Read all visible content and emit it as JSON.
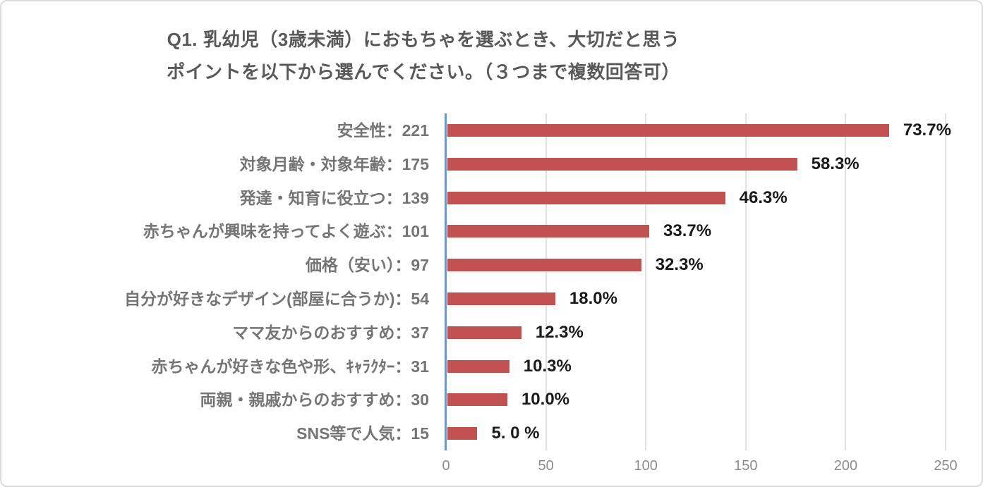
{
  "chart_data": {
    "type": "bar",
    "orientation": "horizontal",
    "title_line1": "Q1. 乳幼児（3歳未満）におもちゃを選ぶとき、大切だと思う",
    "title_line2": "ポイントを以下から選んでください。（３つまで複数回答可）",
    "xlabel": "",
    "ylabel": "",
    "grid": true,
    "legend": false,
    "colors": {
      "bar": "#C15150",
      "value_axis_line": "#7396C8",
      "gridline": "#E2E2E2",
      "title_text": "#595959",
      "category_label_text": "#757575",
      "percent_label_text": "#1A1A1A",
      "tick_label_text": "#8C8C8C",
      "frame_border": "#DBDBDB"
    },
    "x_axis": {
      "min": 0,
      "max": 250,
      "tick_values": [
        0,
        50,
        100,
        150,
        200,
        250
      ],
      "tick_labels": [
        "0",
        "50",
        "100",
        "150",
        "200",
        "250"
      ]
    },
    "rows": [
      {
        "label": "安全性：221",
        "value": 221,
        "pct_label": "73.7%"
      },
      {
        "label": "対象月齢・対象年齢：175",
        "value": 175,
        "pct_label": "58.3%"
      },
      {
        "label": "発達・知育に役立つ：139",
        "value": 139,
        "pct_label": "46.3%"
      },
      {
        "label": "赤ちゃんが興味を持ってよく遊ぶ：101",
        "value": 101,
        "pct_label": "33.7%"
      },
      {
        "label": "価格（安い）：97",
        "value": 97,
        "pct_label": "32.3%"
      },
      {
        "label": "自分が好きなデザイン(部屋に合うか)：54",
        "value": 54,
        "pct_label": "18.0%"
      },
      {
        "label": "ママ友からのおすすめ：37",
        "value": 37,
        "pct_label": "12.3%"
      },
      {
        "label": "赤ちゃんが好きな色や形、ｷｬﾗｸﾀｰ：31",
        "value": 31,
        "pct_label": "10.3%"
      },
      {
        "label": "両親・親戚からのおすすめ：30",
        "value": 30,
        "pct_label": "10.0%"
      },
      {
        "label": "SNS等で人気：15",
        "value": 15,
        "pct_label": "5. 0 %"
      }
    ]
  }
}
